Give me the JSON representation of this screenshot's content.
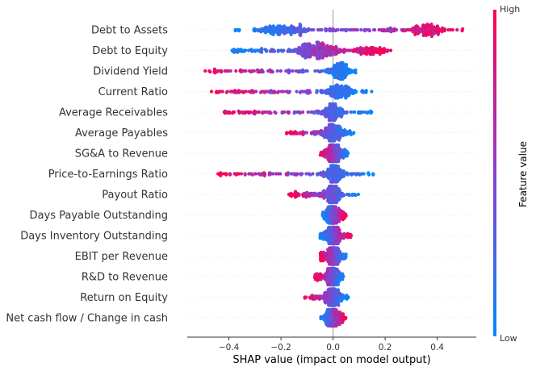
{
  "chart_data": {
    "type": "scatter",
    "subtype": "shap-beeswarm",
    "xlabel": "SHAP value (impact on model output)",
    "xlim": [
      -0.56,
      0.55
    ],
    "xticks": [
      -0.4,
      -0.2,
      0.0,
      0.2,
      0.4
    ],
    "xtick_labels": [
      "−0.4",
      "−0.2",
      "0.0",
      "0.2",
      "0.4"
    ],
    "zero_line": 0.0,
    "colorbar": {
      "title": "Feature value",
      "high_label": "High",
      "low_label": "Low",
      "high_color": "#ff0052",
      "low_color": "#008bfb"
    },
    "features": [
      {
        "name": "Debt to Assets",
        "min": -0.38,
        "max": 0.5,
        "spread": 1.0,
        "density": [
          {
            "x": -0.2,
            "w": 0.05,
            "a": 1.0
          },
          {
            "x": 0.36,
            "w": 0.04,
            "a": 0.8
          }
        ],
        "low_side": "negative"
      },
      {
        "name": "Debt to Equity",
        "min": -0.39,
        "max": 0.23,
        "spread": 0.9,
        "density": [
          {
            "x": -0.09,
            "w": 0.04,
            "a": 1.0
          },
          {
            "x": -0.03,
            "w": 0.03,
            "a": 0.7
          },
          {
            "x": 0.15,
            "w": 0.03,
            "a": 0.5
          }
        ],
        "low_side": "negative"
      },
      {
        "name": "Dividend Yield",
        "min": -0.51,
        "max": 0.1,
        "spread": 0.5,
        "density": [
          {
            "x": 0.03,
            "w": 0.02,
            "a": 1.0
          }
        ],
        "low_side": "positive"
      },
      {
        "name": "Current Ratio",
        "min": -0.47,
        "max": 0.15,
        "spread": 0.6,
        "density": [
          {
            "x": 0.02,
            "w": 0.03,
            "a": 1.0
          }
        ],
        "low_side": "positive"
      },
      {
        "name": "Average Receivables",
        "min": -0.42,
        "max": 0.15,
        "spread": 0.5,
        "density": [
          {
            "x": 0.0,
            "w": 0.02,
            "a": 1.0
          }
        ],
        "low_side": "positive"
      },
      {
        "name": "Average Payables",
        "min": -0.18,
        "max": 0.08,
        "spread": 0.4,
        "density": [
          {
            "x": 0.0,
            "w": 0.02,
            "a": 1.0
          }
        ],
        "low_side": "positive"
      },
      {
        "name": "SG&A to Revenue",
        "min": -0.05,
        "max": 0.06,
        "spread": 0.4,
        "density": [
          {
            "x": 0.0,
            "w": 0.015,
            "a": 1.0
          }
        ],
        "low_side": "positive"
      },
      {
        "name": "Price-to-Earnings Ratio",
        "min": -0.45,
        "max": 0.16,
        "spread": 0.5,
        "density": [
          {
            "x": 0.0,
            "w": 0.02,
            "a": 1.0
          }
        ],
        "low_side": "positive"
      },
      {
        "name": "Payout Ratio",
        "min": -0.17,
        "max": 0.1,
        "spread": 0.4,
        "density": [
          {
            "x": 0.0,
            "w": 0.02,
            "a": 1.0
          }
        ],
        "low_side": "positive"
      },
      {
        "name": "Days Payable Outstanding",
        "min": -0.04,
        "max": 0.05,
        "spread": 0.3,
        "density": [
          {
            "x": 0.0,
            "w": 0.015,
            "a": 1.0
          }
        ],
        "low_side": "negative"
      },
      {
        "name": "Days Inventory Outstanding",
        "min": -0.05,
        "max": 0.07,
        "spread": 0.3,
        "density": [
          {
            "x": 0.0,
            "w": 0.015,
            "a": 1.0
          }
        ],
        "low_side": "negative"
      },
      {
        "name": "EBIT per Revenue",
        "min": -0.05,
        "max": 0.05,
        "spread": 0.3,
        "density": [
          {
            "x": 0.0,
            "w": 0.015,
            "a": 1.0
          }
        ],
        "low_side": "positive"
      },
      {
        "name": "R&D to Revenue",
        "min": -0.07,
        "max": 0.04,
        "spread": 0.3,
        "density": [
          {
            "x": 0.0,
            "w": 0.015,
            "a": 1.0
          }
        ],
        "low_side": "positive"
      },
      {
        "name": "Return on Equity",
        "min": -0.11,
        "max": 0.06,
        "spread": 0.3,
        "density": [
          {
            "x": 0.0,
            "w": 0.015,
            "a": 1.0
          }
        ],
        "low_side": "positive"
      },
      {
        "name": "Net cash flow / Change in cash",
        "min": -0.05,
        "max": 0.05,
        "spread": 0.3,
        "density": [
          {
            "x": 0.0,
            "w": 0.015,
            "a": 1.0
          }
        ],
        "low_side": "negative"
      }
    ]
  }
}
